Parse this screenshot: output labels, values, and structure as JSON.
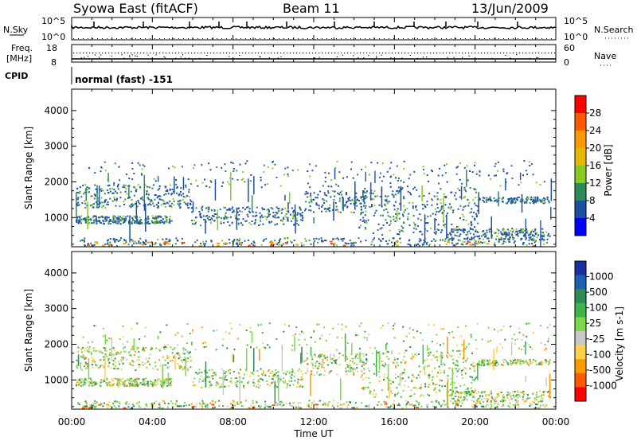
{
  "header": {
    "station": "Syowa East (fitACF)",
    "beam": "Beam 11",
    "date": "13/Jun/2009"
  },
  "summary": {
    "nsky_label": "N.Sky",
    "nsky_ticks": [
      "10^5",
      "10^0"
    ],
    "nsearch_label": "N.Search",
    "nsearch_ticks": [
      "10^5",
      "10^0"
    ],
    "freq_label_line1": "Freq.",
    "freq_label_line2": "[MHz]",
    "freq_ticks": [
      "18",
      "8"
    ],
    "nave_label": "Nave",
    "nave_ticks": [
      "60",
      "0"
    ],
    "cpid_label": "CPID",
    "cpid_text": "normal (fast) -151"
  },
  "chart_data": [
    {
      "type": "heatmap",
      "name": "power-panel",
      "ylabel": "Slant Range [km]",
      "yticks": [
        "4000",
        "3000",
        "2000",
        "1000"
      ],
      "ytick_values": [
        4000,
        3000,
        2000,
        1000
      ],
      "ylim": [
        180,
        4600
      ],
      "xlabel": "",
      "colorbar": {
        "label": "Power [dB]",
        "ticks": [
          "28",
          "24",
          "20",
          "16",
          "12",
          "8",
          "4"
        ],
        "colors": [
          "#ff0000",
          "#ff5a00",
          "#ff9900",
          "#e6b800",
          "#88cc22",
          "#2e8b57",
          "#1e4fa0",
          "#0000ff"
        ]
      }
    },
    {
      "type": "heatmap",
      "name": "velocity-panel",
      "ylabel": "Slant Range [km]",
      "yticks": [
        "4000",
        "3000",
        "2000",
        "1000"
      ],
      "ytick_values": [
        4000,
        3000,
        2000,
        1000
      ],
      "ylim": [
        180,
        4600
      ],
      "xlabel": "Time UT",
      "xticks": [
        "00:00",
        "04:00",
        "08:00",
        "12:00",
        "16:00",
        "20:00",
        "00:00"
      ],
      "colorbar": {
        "label": "Velocity [m s-1]",
        "ticks": [
          "1000",
          "500",
          "100",
          "25",
          "-25",
          "-100",
          "-500",
          "-1000"
        ],
        "colors": [
          "#1a2fa0",
          "#1e5fb0",
          "#2e8b57",
          "#3db54a",
          "#7dd84a",
          "#c8c8c8",
          "#ffd24a",
          "#ff9900",
          "#ff5a00",
          "#ff0000"
        ]
      }
    }
  ]
}
